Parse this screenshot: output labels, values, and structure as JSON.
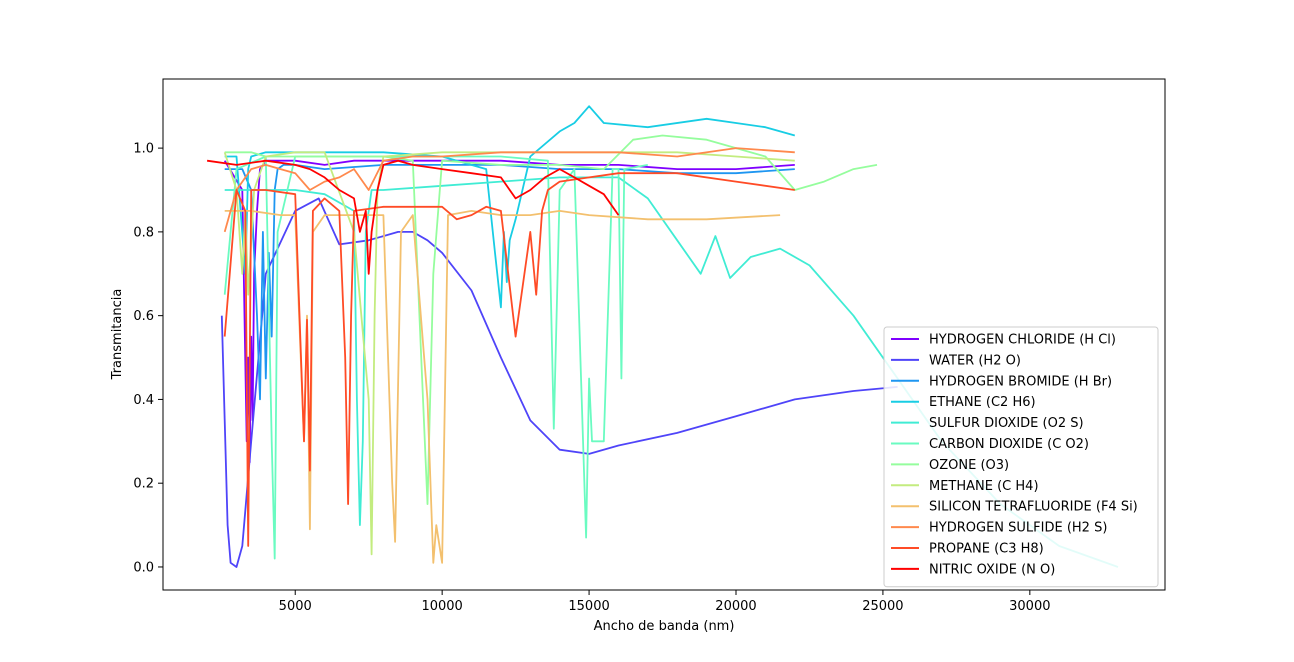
{
  "chart_data": {
    "type": "line",
    "title": "",
    "xlabel": "Ancho de banda (nm)",
    "ylabel": "Transmitancia",
    "xlim": [
      500,
      34600
    ],
    "ylim": [
      -0.055,
      1.165
    ],
    "xticks": [
      5000,
      10000,
      15000,
      20000,
      25000,
      30000
    ],
    "yticks": [
      0.0,
      0.2,
      0.4,
      0.6,
      0.8,
      1.0
    ],
    "xtick_labels": [
      "5000",
      "10000",
      "15000",
      "20000",
      "25000",
      "30000"
    ],
    "ytick_labels": [
      "0.0",
      "0.2",
      "0.4",
      "0.6",
      "0.8",
      "1.0"
    ],
    "grid": false,
    "legend_position": "lower-right",
    "series": [
      {
        "name": "HYDROGEN CHLORIDE (H Cl)",
        "color": "#7f00ff",
        "x": [
          2600,
          3200,
          3350,
          3400,
          3450,
          3500,
          3550,
          3600,
          3700,
          3800,
          4000,
          5000,
          6000,
          7000,
          8000,
          9000,
          10000,
          12000,
          14000,
          16000,
          18000,
          20000,
          22000
        ],
        "y": [
          0.97,
          0.9,
          0.3,
          0.5,
          0.25,
          0.55,
          0.35,
          0.7,
          0.85,
          0.95,
          0.97,
          0.97,
          0.96,
          0.97,
          0.97,
          0.97,
          0.97,
          0.97,
          0.96,
          0.96,
          0.95,
          0.95,
          0.96
        ]
      },
      {
        "name": "WATER (H2 O)",
        "color": "#4f44f9",
        "x": [
          2500,
          2600,
          2700,
          2800,
          3000,
          3200,
          3500,
          4000,
          5000,
          5800,
          6500,
          7500,
          8500,
          9000,
          9500,
          10000,
          11000,
          12000,
          13000,
          14000,
          15000,
          16000,
          18000,
          20000,
          22000,
          24000,
          25500
        ],
        "y": [
          0.6,
          0.35,
          0.1,
          0.01,
          0.0,
          0.05,
          0.3,
          0.7,
          0.85,
          0.88,
          0.77,
          0.78,
          0.8,
          0.8,
          0.78,
          0.75,
          0.66,
          0.5,
          0.35,
          0.28,
          0.27,
          0.29,
          0.32,
          0.36,
          0.4,
          0.42,
          0.43
        ]
      },
      {
        "name": "HYDROGEN BROMIDE (H Br)",
        "color": "#1e96f1",
        "x": [
          2600,
          3200,
          3500,
          3700,
          3800,
          3900,
          4000,
          4100,
          4200,
          4300,
          4400,
          4600,
          5000,
          6000,
          8000,
          10000,
          12000,
          14000,
          16000,
          18000,
          20000,
          22000
        ],
        "y": [
          0.95,
          0.95,
          0.9,
          0.6,
          0.4,
          0.8,
          0.45,
          0.75,
          0.55,
          0.9,
          0.95,
          0.96,
          0.96,
          0.95,
          0.96,
          0.96,
          0.96,
          0.95,
          0.95,
          0.94,
          0.94,
          0.95
        ]
      },
      {
        "name": "ETHANE (C2 H6)",
        "color": "#18cde4",
        "x": [
          2600,
          3000,
          3300,
          3400,
          3500,
          4000,
          5000,
          6000,
          8000,
          10000,
          11500,
          11800,
          12000,
          12100,
          12200,
          12300,
          12500,
          13000,
          14000,
          14500,
          15000,
          15500,
          17000,
          19000,
          20000,
          21000,
          22000
        ],
        "y": [
          0.98,
          0.98,
          0.7,
          0.95,
          0.98,
          0.99,
          0.99,
          0.99,
          0.99,
          0.98,
          0.95,
          0.75,
          0.62,
          0.8,
          0.68,
          0.78,
          0.83,
          0.98,
          1.04,
          1.06,
          1.1,
          1.06,
          1.05,
          1.07,
          1.06,
          1.05,
          1.03
        ]
      },
      {
        "name": "SULFUR DIOXIDE (O2 S)",
        "color": "#40ecd4",
        "x": [
          2600,
          4000,
          5000,
          6000,
          7000,
          7100,
          7200,
          7300,
          7400,
          7600,
          8000,
          10000,
          12000,
          14000,
          16000,
          17000,
          18000,
          18800,
          19300,
          19800,
          20500,
          21500,
          22500,
          24000,
          25500,
          27000,
          29000,
          31000,
          33000
        ],
        "y": [
          0.9,
          0.9,
          0.9,
          0.89,
          0.85,
          0.4,
          0.1,
          0.3,
          0.8,
          0.9,
          0.9,
          0.91,
          0.92,
          0.93,
          0.93,
          0.88,
          0.78,
          0.7,
          0.79,
          0.69,
          0.74,
          0.76,
          0.72,
          0.6,
          0.45,
          0.3,
          0.15,
          0.05,
          0.0
        ]
      },
      {
        "name": "CARBON DIOXIDE (C O2)",
        "color": "#6afbc1",
        "x": [
          2600,
          3000,
          4000,
          4200,
          4300,
          4400,
          5000,
          6000,
          8000,
          10000,
          12000,
          13600,
          13800,
          14000,
          14500,
          14900,
          15000,
          15100,
          15500,
          15800,
          16000,
          16100,
          16200,
          17000
        ],
        "y": [
          0.65,
          0.95,
          0.98,
          0.3,
          0.02,
          0.8,
          0.98,
          0.98,
          0.98,
          0.98,
          0.98,
          0.97,
          0.33,
          0.9,
          0.95,
          0.07,
          0.45,
          0.3,
          0.3,
          0.95,
          0.95,
          0.45,
          0.95,
          0.96
        ]
      },
      {
        "name": "OZONE (O3)",
        "color": "#95fd9d",
        "x": [
          2600,
          3500,
          4000,
          5000,
          6000,
          7000,
          8000,
          9000,
          9500,
          9700,
          10000,
          12000,
          14000,
          15500,
          16500,
          17500,
          19000,
          20000,
          21000,
          22000,
          23000,
          24000,
          24800
        ],
        "y": [
          0.99,
          0.99,
          0.98,
          0.98,
          0.98,
          0.98,
          0.98,
          0.97,
          0.15,
          0.7,
          0.97,
          0.96,
          0.96,
          0.95,
          1.02,
          1.03,
          1.02,
          1.0,
          0.98,
          0.9,
          0.92,
          0.95,
          0.96
        ]
      },
      {
        "name": "METHANE (C H4)",
        "color": "#c3ec7f",
        "x": [
          2600,
          3000,
          3200,
          3300,
          3400,
          3600,
          4000,
          5000,
          6000,
          7000,
          7500,
          7600,
          7700,
          7800,
          8000,
          10000,
          12000,
          14000,
          16000,
          18000,
          20000,
          22000
        ],
        "y": [
          0.99,
          0.9,
          0.7,
          0.85,
          0.65,
          0.9,
          0.98,
          0.99,
          0.99,
          0.8,
          0.4,
          0.03,
          0.6,
          0.9,
          0.98,
          0.99,
          0.99,
          0.99,
          0.99,
          0.99,
          0.98,
          0.97
        ]
      },
      {
        "name": "SILICON TETRAFLUORIDE (F4 Si)",
        "color": "#f3c06e",
        "x": [
          2600,
          3500,
          4500,
          5000,
          5300,
          5400,
          5500,
          5600,
          6000,
          7000,
          8000,
          8300,
          8400,
          8600,
          9000,
          9500,
          9700,
          9800,
          10000,
          10200,
          11000,
          12000,
          13000,
          14000,
          15000,
          17000,
          19000,
          21500
        ],
        "y": [
          0.85,
          0.85,
          0.84,
          0.84,
          0.3,
          0.6,
          0.09,
          0.8,
          0.84,
          0.84,
          0.84,
          0.2,
          0.06,
          0.8,
          0.84,
          0.4,
          0.01,
          0.1,
          0.01,
          0.84,
          0.85,
          0.84,
          0.84,
          0.85,
          0.84,
          0.83,
          0.83,
          0.84
        ]
      },
      {
        "name": "HYDROGEN SULFIDE (H2 S)",
        "color": "#ff894d",
        "x": [
          2600,
          3000,
          3500,
          4000,
          4500,
          5000,
          5500,
          6000,
          6500,
          7000,
          7500,
          8000,
          9000,
          10000,
          12000,
          14000,
          16000,
          18000,
          20000,
          22000
        ],
        "y": [
          0.8,
          0.9,
          0.95,
          0.96,
          0.95,
          0.94,
          0.9,
          0.92,
          0.93,
          0.95,
          0.9,
          0.97,
          0.98,
          0.98,
          0.99,
          0.99,
          0.99,
          0.98,
          1.0,
          0.99
        ]
      },
      {
        "name": "PROPANE (C3 H8)",
        "color": "#ff4b26",
        "x": [
          2600,
          3000,
          3300,
          3400,
          3500,
          4000,
          5000,
          5300,
          5400,
          5500,
          5600,
          6000,
          6500,
          6700,
          6800,
          6900,
          7000,
          8000,
          9000,
          10000,
          10500,
          11000,
          11500,
          12000,
          12500,
          13000,
          13200,
          13400,
          13600,
          14000,
          15000,
          16000,
          18000,
          20000,
          22000
        ],
        "y": [
          0.55,
          0.9,
          0.85,
          0.05,
          0.9,
          0.9,
          0.89,
          0.3,
          0.59,
          0.23,
          0.85,
          0.88,
          0.85,
          0.5,
          0.15,
          0.6,
          0.85,
          0.86,
          0.86,
          0.86,
          0.83,
          0.84,
          0.86,
          0.85,
          0.55,
          0.8,
          0.65,
          0.85,
          0.9,
          0.92,
          0.93,
          0.94,
          0.94,
          0.92,
          0.9
        ]
      },
      {
        "name": "NITRIC OXIDE (N O)",
        "color": "#ff0000",
        "x": [
          2000,
          3000,
          4000,
          5000,
          5500,
          6000,
          6500,
          7000,
          7200,
          7400,
          7500,
          7600,
          7800,
          8000,
          8500,
          9000,
          10000,
          11000,
          12000,
          12500,
          13000,
          13500,
          14000,
          14500,
          15000,
          15500,
          16000
        ],
        "y": [
          0.97,
          0.96,
          0.97,
          0.96,
          0.95,
          0.93,
          0.9,
          0.88,
          0.8,
          0.85,
          0.7,
          0.8,
          0.9,
          0.96,
          0.97,
          0.96,
          0.95,
          0.94,
          0.93,
          0.88,
          0.9,
          0.93,
          0.95,
          0.93,
          0.91,
          0.89,
          0.84
        ]
      }
    ]
  }
}
